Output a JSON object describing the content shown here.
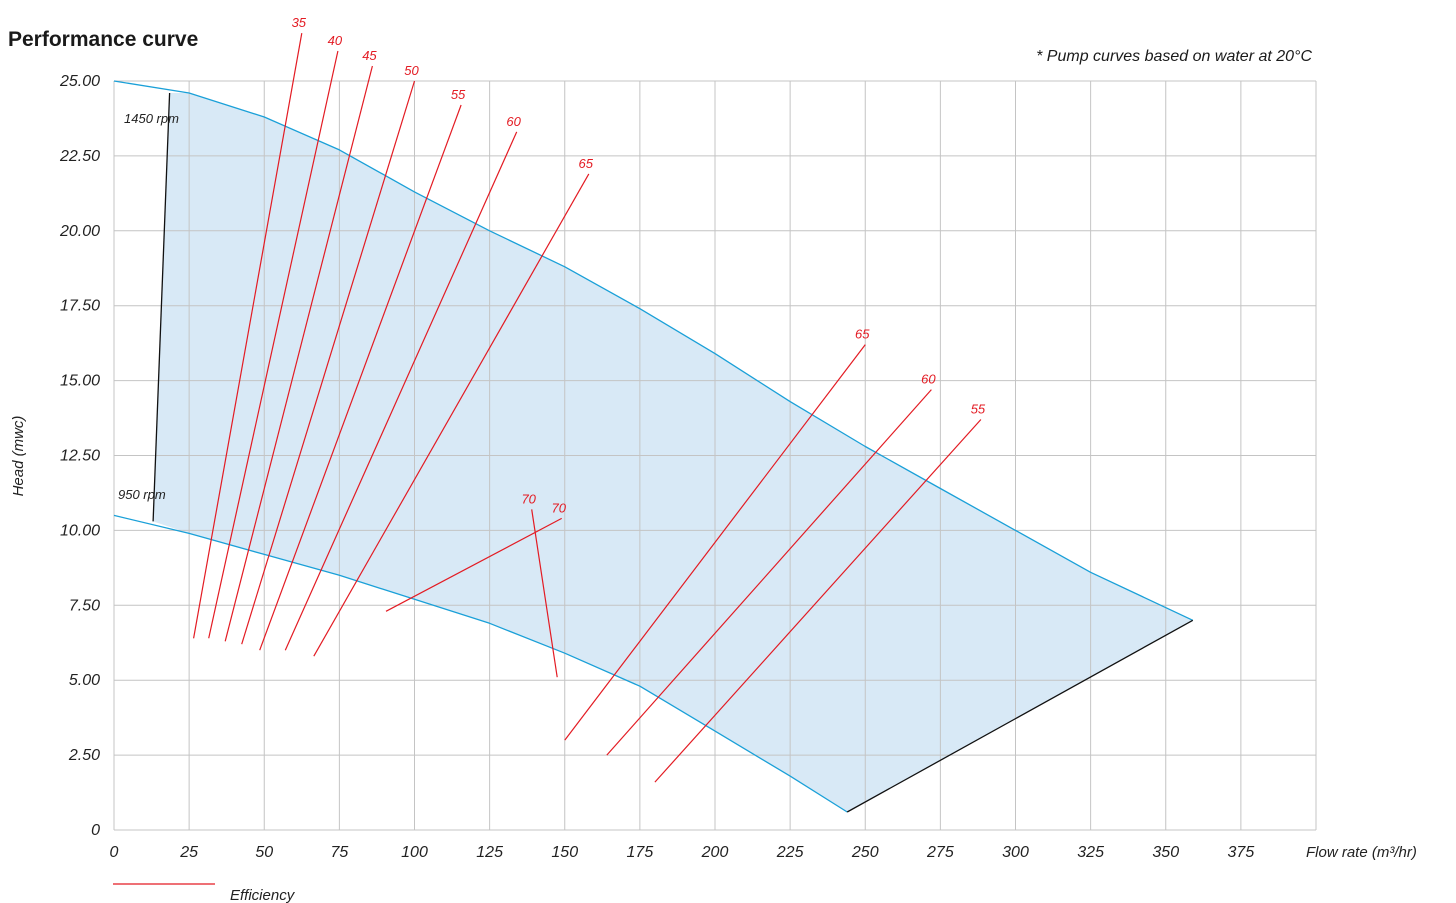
{
  "chart_data": {
    "type": "line",
    "title": "Performance curve",
    "note": "* Pump curves based on water at 20°C",
    "xlabel": "Flow rate (m³/hr)",
    "ylabel": "Head (mwc)",
    "xlim": [
      0,
      400
    ],
    "ylim": [
      0,
      25
    ],
    "x_ticks": [
      "0",
      "25",
      "50",
      "75",
      "100",
      "125",
      "150",
      "175",
      "200",
      "225",
      "250",
      "275",
      "300",
      "325",
      "350",
      "375"
    ],
    "y_ticks": [
      "0",
      "2.50",
      "5.00",
      "7.50",
      "10.00",
      "12.50",
      "15.00",
      "17.50",
      "20.00",
      "22.50",
      "25.00"
    ],
    "grid": true,
    "operating_region_color": "#d8e9f6",
    "pump_curve_color": "#1aa0d8",
    "efficiency_color": "#e31b23",
    "series": [
      {
        "name": "1450 rpm",
        "x": [
          0,
          25,
          50,
          75,
          100,
          125,
          150,
          175,
          200,
          225,
          250,
          275,
          300,
          325,
          359
        ],
        "y": [
          25.0,
          24.6,
          23.8,
          22.7,
          21.3,
          20.0,
          18.8,
          17.4,
          15.9,
          14.3,
          12.8,
          11.4,
          10.0,
          8.6,
          7.0
        ]
      },
      {
        "name": "950 rpm",
        "x": [
          0,
          25,
          50,
          75,
          100,
          125,
          150,
          175,
          200,
          225,
          244
        ],
        "y": [
          10.5,
          9.9,
          9.2,
          8.5,
          7.7,
          6.9,
          5.9,
          4.8,
          3.3,
          1.8,
          0.6
        ]
      }
    ],
    "limit_lines": [
      {
        "x": [
          13,
          18.5
        ],
        "y": [
          10.3,
          24.6
        ]
      },
      {
        "x": [
          244,
          359
        ],
        "y": [
          0.6,
          7.0
        ]
      }
    ],
    "efficiency_lines": [
      {
        "label": "35",
        "x": [
          26.5,
          62.5
        ],
        "y": [
          6.4,
          26.6
        ]
      },
      {
        "label": "40",
        "x": [
          31.5,
          74.5
        ],
        "y": [
          6.4,
          26.0
        ]
      },
      {
        "label": "45",
        "x": [
          37,
          86
        ],
        "y": [
          6.3,
          25.5
        ]
      },
      {
        "label": "50",
        "x": [
          42.5,
          100
        ],
        "y": [
          6.2,
          25.0
        ]
      },
      {
        "label": "55",
        "x": [
          48.5,
          115.5
        ],
        "y": [
          6.0,
          24.2
        ]
      },
      {
        "label": "60",
        "x": [
          57,
          134
        ],
        "y": [
          6.0,
          23.3
        ]
      },
      {
        "label": "65",
        "x": [
          66.5,
          158
        ],
        "y": [
          5.8,
          21.9
        ]
      },
      {
        "label": "70",
        "x": [
          90.5,
          149
        ],
        "y": [
          7.3,
          10.4
        ]
      },
      {
        "label": "70",
        "x": [
          139,
          147.5
        ],
        "y": [
          10.7,
          5.1
        ]
      },
      {
        "label": "65",
        "x": [
          150,
          250
        ],
        "y": [
          3.0,
          16.2
        ]
      },
      {
        "label": "60",
        "x": [
          164,
          272
        ],
        "y": [
          2.5,
          14.7
        ]
      },
      {
        "label": "55",
        "x": [
          180,
          288.5
        ],
        "y": [
          1.6,
          13.7
        ]
      }
    ],
    "legend": {
      "label": "Efficiency",
      "position": "bottom-left"
    }
  }
}
